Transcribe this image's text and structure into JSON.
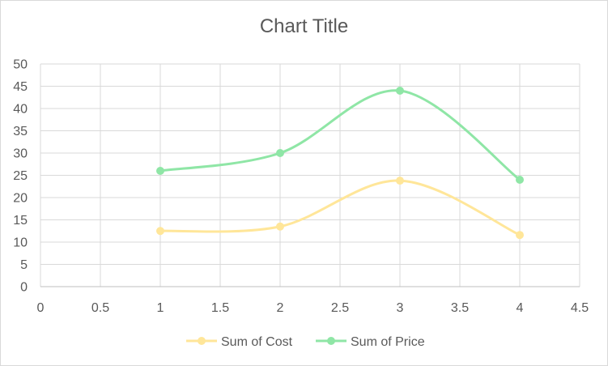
{
  "chart_data": {
    "type": "scatter",
    "title": "Chart Title",
    "xlabel": "",
    "ylabel": "",
    "xlim": [
      0,
      4.5
    ],
    "ylim": [
      0,
      50
    ],
    "x_ticks": [
      "0",
      "0.5",
      "1",
      "1.5",
      "2",
      "2.5",
      "3",
      "3.5",
      "4",
      "4.5"
    ],
    "y_ticks": [
      "0",
      "5",
      "10",
      "15",
      "20",
      "25",
      "30",
      "35",
      "40",
      "45",
      "50"
    ],
    "grid": true,
    "smooth": true,
    "legend_position": "bottom",
    "series": [
      {
        "name": "Sum of Cost",
        "color": "#ffe699",
        "x": [
          1,
          2,
          3,
          4
        ],
        "y": [
          12.5,
          13.5,
          23.8,
          11.6
        ]
      },
      {
        "name": "Sum of Price",
        "color": "#8fe6a6",
        "x": [
          1,
          2,
          3,
          4
        ],
        "y": [
          26,
          30,
          44,
          24
        ]
      }
    ]
  }
}
